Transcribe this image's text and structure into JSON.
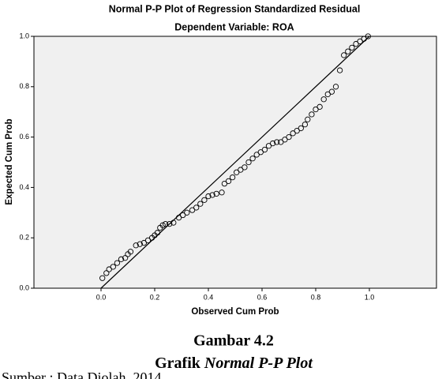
{
  "chart_data": {
    "type": "scatter",
    "title": "Normal P-P Plot of Regression Standardized Residual",
    "subtitle": "Dependent Variable: ROA",
    "x_label": "Observed Cum Prob",
    "y_label": "Expected Cum Prob",
    "xlim": [
      -0.25,
      1.25
    ],
    "ylim": [
      0,
      1
    ],
    "xticks": [
      {
        "value": 0,
        "label": "0.0"
      },
      {
        "value": 0.2,
        "label": "0.2"
      },
      {
        "value": 0.4,
        "label": "0.4"
      },
      {
        "value": 0.6,
        "label": "0.6"
      },
      {
        "value": 0.8,
        "label": "0.8"
      },
      {
        "value": 1,
        "label": "1.0"
      }
    ],
    "yticks": [
      {
        "value": 0,
        "label": "0.0"
      },
      {
        "value": 0.2,
        "label": "0.2"
      },
      {
        "value": 0.4,
        "label": "0.4"
      },
      {
        "value": 0.6,
        "label": "0.6"
      },
      {
        "value": 0.8,
        "label": "0.8"
      },
      {
        "value": 1,
        "label": "1.0"
      }
    ],
    "color": "#000000",
    "x": [
      0.005,
      0.02,
      0.03,
      0.045,
      0.06,
      0.075,
      0.09,
      0.1,
      0.11,
      0.13,
      0.145,
      0.16,
      0.175,
      0.19,
      0.2,
      0.21,
      0.22,
      0.23,
      0.24,
      0.255,
      0.27,
      0.29,
      0.305,
      0.32,
      0.34,
      0.355,
      0.37,
      0.385,
      0.4,
      0.415,
      0.43,
      0.45,
      0.46,
      0.475,
      0.49,
      0.505,
      0.52,
      0.535,
      0.55,
      0.565,
      0.58,
      0.595,
      0.61,
      0.625,
      0.64,
      0.655,
      0.67,
      0.685,
      0.7,
      0.715,
      0.73,
      0.745,
      0.76,
      0.77,
      0.785,
      0.8,
      0.815,
      0.83,
      0.845,
      0.86,
      0.875,
      0.89,
      0.905,
      0.92,
      0.935,
      0.95,
      0.965,
      0.98,
      0.995
    ],
    "values": [
      0.04,
      0.06,
      0.075,
      0.085,
      0.1,
      0.115,
      0.12,
      0.135,
      0.145,
      0.17,
      0.175,
      0.18,
      0.19,
      0.2,
      0.21,
      0.22,
      0.24,
      0.25,
      0.255,
      0.255,
      0.26,
      0.28,
      0.29,
      0.3,
      0.31,
      0.32,
      0.335,
      0.35,
      0.365,
      0.37,
      0.375,
      0.38,
      0.415,
      0.425,
      0.44,
      0.46,
      0.47,
      0.48,
      0.5,
      0.515,
      0.53,
      0.54,
      0.55,
      0.565,
      0.575,
      0.58,
      0.58,
      0.59,
      0.6,
      0.615,
      0.625,
      0.635,
      0.65,
      0.67,
      0.69,
      0.71,
      0.72,
      0.75,
      0.77,
      0.78,
      0.8,
      0.865,
      0.925,
      0.94,
      0.955,
      0.97,
      0.98,
      0.99,
      1.0
    ]
  },
  "caption": {
    "figure": "Gambar 4.2",
    "title_prefix": "Grafik ",
    "title_italic": "Normal P-P Plot",
    "source": "Sumber : Data Diolah, 2014"
  }
}
